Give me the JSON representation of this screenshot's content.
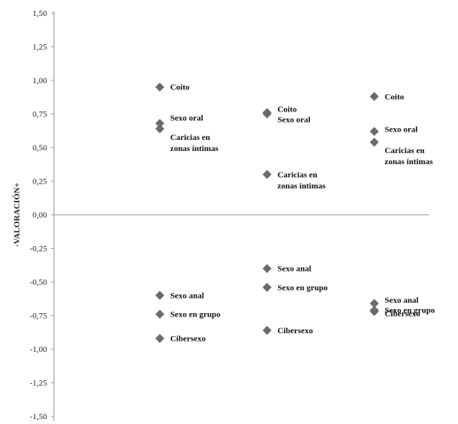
{
  "chart_data": {
    "type": "scatter",
    "title": "",
    "xlabel": "",
    "ylabel": "-VALORACIÓN+",
    "ylim": [
      -1.5,
      1.5
    ],
    "y_ticks": [
      "1,50",
      "1,25",
      "1,00",
      "0,75",
      "0,50",
      "0,25",
      "0,00",
      "-0,25",
      "-0,50",
      "-0,75",
      "-1,00",
      "-1,25",
      "-1,50"
    ],
    "marker_color": "#6b6b6b",
    "grid": false,
    "columns": [
      {
        "points": [
          {
            "label": "Coito",
            "value": 0.95
          },
          {
            "label": "Sexo oral",
            "value": 0.68
          },
          {
            "label": "Caricias en zonas íntimas",
            "value": 0.64
          },
          {
            "label": "Sexo anal",
            "value": -0.6
          },
          {
            "label": "Sexo en grupo",
            "value": -0.74
          },
          {
            "label": "Cibersexo",
            "value": -0.92
          }
        ]
      },
      {
        "points": [
          {
            "label": "Coito",
            "value": 0.76
          },
          {
            "label": "Sexo oral",
            "value": 0.75
          },
          {
            "label": "Caricias en zonas íntimas",
            "value": 0.3
          },
          {
            "label": "Sexo anal",
            "value": -0.4
          },
          {
            "label": "Sexo en grupo",
            "value": -0.54
          },
          {
            "label": "Cibersexo",
            "value": -0.86
          }
        ]
      },
      {
        "points": [
          {
            "label": "Coito",
            "value": 0.88
          },
          {
            "label": "Sexo oral",
            "value": 0.62
          },
          {
            "label": "Caricias en zonas íntimas",
            "value": 0.54
          },
          {
            "label": "Sexo anal",
            "value": -0.66
          },
          {
            "label": "Sexo en grupo",
            "value": -0.71
          },
          {
            "label": "Cibersexo",
            "value": -0.72
          }
        ]
      }
    ]
  }
}
